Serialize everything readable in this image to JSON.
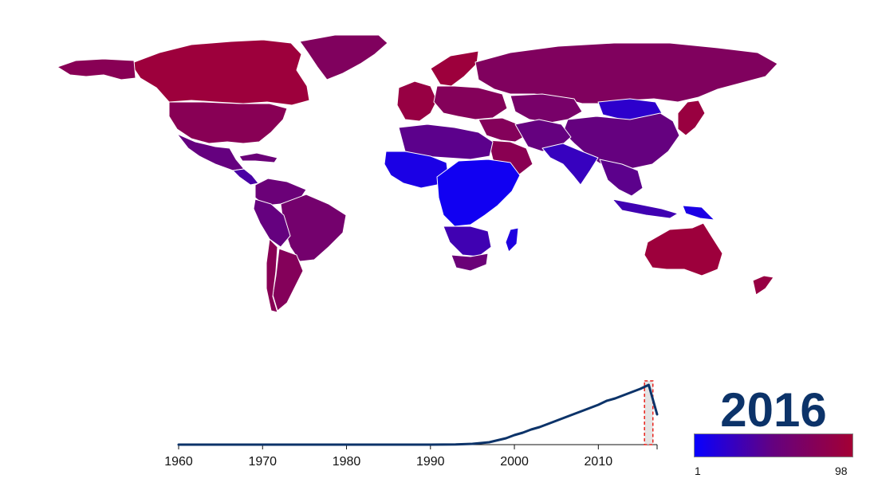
{
  "map": {
    "color_scale": {
      "min_label": "1",
      "max_label": "98",
      "min_color": "#0800ff",
      "mid_color": "#65017f",
      "max_color": "#a30034"
    },
    "regions": [
      {
        "name": "Canada",
        "level": 0.95
      },
      {
        "name": "Alaska",
        "level": 0.78
      },
      {
        "name": "Greenland",
        "level": 0.72
      },
      {
        "name": "United States",
        "level": 0.78
      },
      {
        "name": "Mexico",
        "level": 0.5
      },
      {
        "name": "Central America",
        "level": 0.35
      },
      {
        "name": "Caribbean",
        "level": 0.55
      },
      {
        "name": "Colombia / Venezuela",
        "level": 0.55
      },
      {
        "name": "Brazil",
        "level": 0.62
      },
      {
        "name": "Peru / Bolivia",
        "level": 0.5
      },
      {
        "name": "Argentina",
        "level": 0.75
      },
      {
        "name": "Chile",
        "level": 0.78
      },
      {
        "name": "Scandinavia",
        "level": 0.95
      },
      {
        "name": "Western Europe",
        "level": 0.9
      },
      {
        "name": "Eastern Europe",
        "level": 0.75
      },
      {
        "name": "Russia",
        "level": 0.72
      },
      {
        "name": "Kazakhstan / Central Asia",
        "level": 0.65
      },
      {
        "name": "Mongolia",
        "level": 0.2
      },
      {
        "name": "China",
        "level": 0.5
      },
      {
        "name": "Japan",
        "level": 0.92
      },
      {
        "name": "Middle East",
        "level": 0.75
      },
      {
        "name": "Saudi Arabia",
        "level": 0.8
      },
      {
        "name": "Iran / Afghanistan",
        "level": 0.5
      },
      {
        "name": "India / South Asia",
        "level": 0.25
      },
      {
        "name": "Southeast Asia",
        "level": 0.45
      },
      {
        "name": "Indonesia",
        "level": 0.3
      },
      {
        "name": "Papua New Guinea",
        "level": 0.1
      },
      {
        "name": "Australia",
        "level": 0.95
      },
      {
        "name": "New Zealand",
        "level": 0.9
      },
      {
        "name": "North Africa",
        "level": 0.45
      },
      {
        "name": "West Africa",
        "level": 0.1
      },
      {
        "name": "Central / East Africa",
        "level": 0.05
      },
      {
        "name": "Southern Africa",
        "level": 0.3
      },
      {
        "name": "South Africa",
        "level": 0.55
      },
      {
        "name": "Madagascar",
        "level": 0.12
      }
    ]
  },
  "year_display": "2016",
  "chart_data": {
    "type": "line",
    "x": [
      1960,
      1965,
      1970,
      1975,
      1980,
      1985,
      1990,
      1993,
      1995,
      1997,
      1999,
      2000,
      2001,
      2002,
      2003,
      2004,
      2005,
      2006,
      2007,
      2008,
      2009,
      2010,
      2011,
      2012,
      2013,
      2014,
      2015,
      2016,
      2017
    ],
    "series": [
      {
        "color": "#0c3369",
        "values": [
          0,
          0,
          0,
          0,
          0,
          0,
          0,
          0.2,
          1,
          3,
          8,
          12,
          15,
          19,
          22,
          26,
          30,
          34,
          38,
          42,
          46,
          50,
          55,
          58,
          62,
          66,
          70,
          75,
          38
        ]
      }
    ],
    "xlim": [
      1960,
      2017
    ],
    "xticks": [
      "1960",
      "1970",
      "1980",
      "1990",
      "2000",
      "2010"
    ],
    "ylim": [
      0,
      80
    ],
    "selected_year": 2016,
    "selection_color": "#e8221d"
  }
}
